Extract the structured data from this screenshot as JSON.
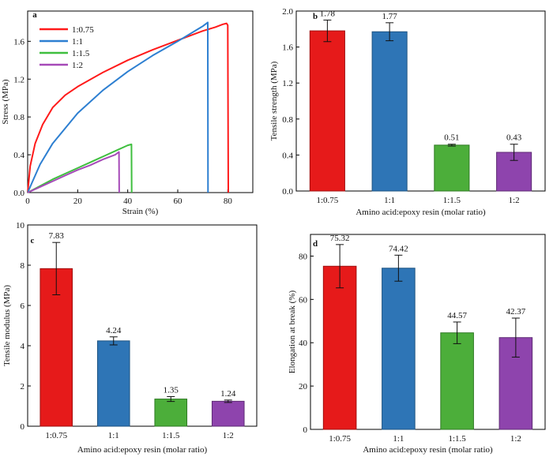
{
  "figure": {
    "panels": {
      "a": "a",
      "b": "b",
      "c": "c",
      "d": "d"
    }
  },
  "chart_data": [
    {
      "panel": "a",
      "type": "line",
      "xlabel": "Strain (%)",
      "ylabel": "Stress (MPa)",
      "xlim": [
        0,
        90
      ],
      "ylim": [
        0,
        1.92
      ],
      "xticks": [
        0,
        20,
        40,
        60,
        80
      ],
      "yticks": [
        0.0,
        0.4,
        0.8,
        1.2,
        1.6
      ],
      "ytick_labels": [
        "0.0",
        "0.4",
        "0.8",
        "1.2",
        "1.6"
      ],
      "legend_position": "top-left",
      "series": [
        {
          "name": "1:0.75",
          "color": "#ff1a1a",
          "x": [
            0,
            1,
            3,
            6,
            10,
            15,
            20,
            30,
            40,
            50,
            60,
            70,
            75,
            78,
            79.5,
            80,
            80.2
          ],
          "y": [
            0,
            0.28,
            0.52,
            0.72,
            0.9,
            1.03,
            1.12,
            1.27,
            1.4,
            1.51,
            1.61,
            1.71,
            1.75,
            1.78,
            1.79,
            1.77,
            0
          ]
        },
        {
          "name": "1:1",
          "color": "#2d7fd1",
          "x": [
            0,
            2,
            5,
            10,
            20,
            30,
            40,
            50,
            60,
            70,
            72,
            72.1
          ],
          "y": [
            0,
            0.12,
            0.3,
            0.52,
            0.84,
            1.08,
            1.28,
            1.45,
            1.6,
            1.76,
            1.8,
            0
          ]
        },
        {
          "name": "1:1.5",
          "color": "#3fbf3f",
          "x": [
            0,
            5,
            10,
            15,
            20,
            25,
            30,
            35,
            40,
            41.5,
            41.6
          ],
          "y": [
            0,
            0.07,
            0.14,
            0.2,
            0.26,
            0.32,
            0.38,
            0.44,
            0.5,
            0.51,
            0
          ]
        },
        {
          "name": "1:2",
          "color": "#a64ab8",
          "x": [
            0,
            5,
            10,
            15,
            20,
            25,
            30,
            35,
            36.5,
            36.6
          ],
          "y": [
            0,
            0.06,
            0.12,
            0.18,
            0.24,
            0.29,
            0.35,
            0.4,
            0.43,
            0
          ]
        }
      ]
    },
    {
      "panel": "b",
      "type": "bar",
      "xlabel": "Amino acid:epoxy resin (molar ratio)",
      "ylabel": "Tensile strength (MPa)",
      "ylim": [
        0,
        2.0
      ],
      "yticks": [
        0.0,
        0.4,
        0.8,
        1.2,
        1.6,
        2.0
      ],
      "ytick_labels": [
        "0.0",
        "0.4",
        "0.8",
        "1.2",
        "1.6",
        "2.0"
      ],
      "categories": [
        "1:0.75",
        "1:1",
        "1:1.5",
        "1:2"
      ],
      "values": [
        1.78,
        1.77,
        0.51,
        0.43
      ],
      "errors": [
        0.12,
        0.1,
        0.01,
        0.09
      ],
      "value_labels": [
        "1.78",
        "1.77",
        "0.51",
        "0.43"
      ]
    },
    {
      "panel": "c",
      "type": "bar",
      "xlabel": "Amino acid:epoxy resin (molar ratio)",
      "ylabel": "Tensile modulus (MPa)",
      "ylim": [
        0,
        10
      ],
      "yticks": [
        0,
        2,
        4,
        6,
        8,
        10
      ],
      "ytick_labels": [
        "0",
        "2",
        "4",
        "6",
        "8",
        "10"
      ],
      "categories": [
        "1:0.75",
        "1:1",
        "1:1.5",
        "1:2"
      ],
      "values": [
        7.83,
        4.24,
        1.35,
        1.24
      ],
      "errors": [
        1.3,
        0.2,
        0.12,
        0.06
      ],
      "value_labels": [
        "7.83",
        "4.24",
        "1.35",
        "1.24"
      ]
    },
    {
      "panel": "d",
      "type": "bar",
      "xlabel": "Amino acid:epoxy resin (molar ratio)",
      "ylabel": "Elongation at break (%)",
      "ylim": [
        0,
        90
      ],
      "yticks": [
        0,
        20,
        40,
        60,
        80
      ],
      "ytick_labels": [
        "0",
        "20",
        "40",
        "60",
        "80"
      ],
      "categories": [
        "1:0.75",
        "1:1",
        "1:1.5",
        "1:2"
      ],
      "values": [
        75.32,
        74.42,
        44.57,
        42.37
      ],
      "errors": [
        10,
        6,
        5,
        9
      ],
      "value_labels": [
        "75.32",
        "74.42",
        "44.57",
        "42.37"
      ]
    }
  ],
  "colors": {
    "red": "#e61a1a",
    "blue": "#2e75b6",
    "green": "#4cae3a",
    "purple": "#8e44ad"
  }
}
